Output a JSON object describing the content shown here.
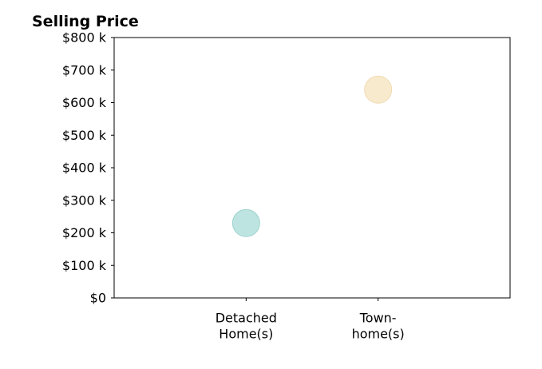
{
  "chart_data": {
    "type": "scatter",
    "title": "Selling Price",
    "xlabel": "",
    "ylabel": "",
    "categories": [
      [
        "Detached",
        "Home(s)"
      ],
      [
        "Town-",
        "home(s)"
      ]
    ],
    "x": [
      1,
      2
    ],
    "xlim": [
      0,
      3
    ],
    "y": [
      230000,
      640000
    ],
    "ylim": [
      0,
      800000
    ],
    "yticks": [
      0,
      100000,
      200000,
      300000,
      400000,
      500000,
      600000,
      700000,
      800000
    ],
    "ytick_labels": [
      "$0",
      "$100 k",
      "$200 k",
      "$300 k",
      "$400 k",
      "$500 k",
      "$600 k",
      "$700 k",
      "$800 k"
    ],
    "point_colors": [
      "#b2dfdb",
      "#f7e6c4"
    ],
    "point_edge_colors": [
      "#9fd3cf",
      "#f0dbb2"
    ],
    "grid": false,
    "legend": "none"
  }
}
